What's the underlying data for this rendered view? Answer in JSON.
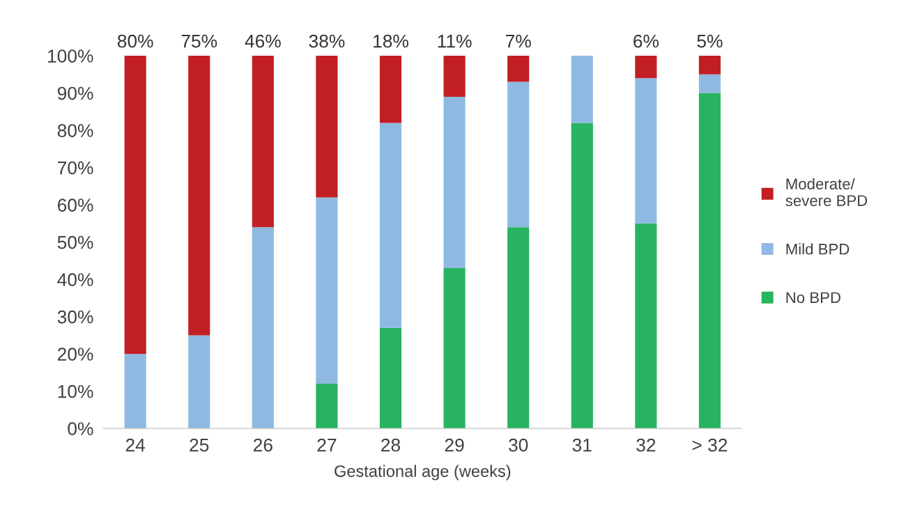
{
  "chart_data": {
    "type": "bar",
    "stacked": true,
    "xlabel": "Gestational age (weeks)",
    "categories": [
      "24",
      "25",
      "26",
      "27",
      "28",
      "29",
      "30",
      "31",
      "32",
      "> 32"
    ],
    "series": [
      {
        "name": "No BPD",
        "color": "#27b35f",
        "values": [
          0,
          0,
          0,
          12,
          27,
          43,
          54,
          82,
          55,
          90
        ]
      },
      {
        "name": "Mild BPD",
        "color": "#8ebae2",
        "values": [
          20,
          25,
          54,
          50,
          55,
          46,
          39,
          18,
          39,
          5
        ]
      },
      {
        "name": "Moderate/\nsevere BPD",
        "color": "#c21f25",
        "values": [
          80,
          75,
          46,
          38,
          18,
          11,
          7,
          null,
          6,
          5
        ],
        "value_labels": [
          "80%",
          "75%",
          "46%",
          "38%",
          "18%",
          "11%",
          "7%",
          null,
          "6%",
          "5%"
        ]
      }
    ],
    "ylim": [
      0,
      100
    ],
    "yticks": [
      {
        "value": 0,
        "label": "0%"
      },
      {
        "value": 10,
        "label": "10%"
      },
      {
        "value": 20,
        "label": "20%"
      },
      {
        "value": 30,
        "label": "30%"
      },
      {
        "value": 40,
        "label": "40%"
      },
      {
        "value": 50,
        "label": "50%"
      },
      {
        "value": 60,
        "label": "60%"
      },
      {
        "value": 70,
        "label": "70%"
      },
      {
        "value": 80,
        "label": "80%"
      },
      {
        "value": 90,
        "label": "90%"
      },
      {
        "value": 100,
        "label": "100%"
      }
    ],
    "grid": false,
    "legend": "right"
  }
}
